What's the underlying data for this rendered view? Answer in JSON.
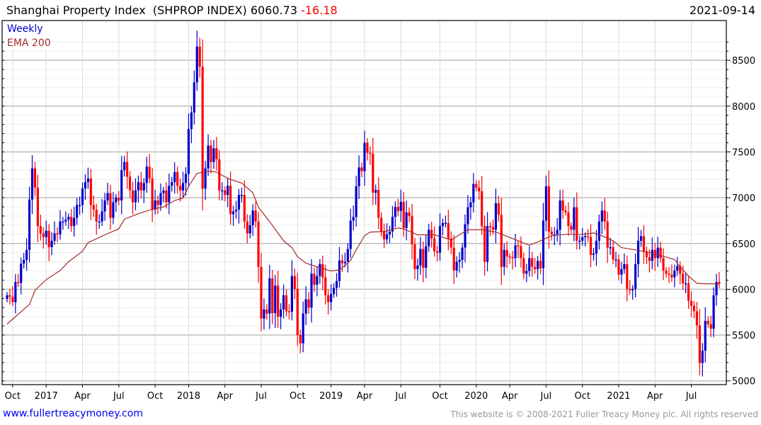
{
  "header": {
    "name": "Shanghai Property Index ",
    "ticker": "(SHPROP INDEX)",
    "last": "6060.73",
    "change": "-16.18",
    "date": "2021-09-14"
  },
  "footer": {
    "site": "www.fullertreacymoney.com",
    "copyright": "This website is © 2008-2021 Fuller Treacy Money plc. All rights reserved"
  },
  "colors": {
    "up": "#0000cc",
    "down": "#ff0000",
    "ema": "#a52a2a",
    "legend_weekly": "#0000cc"
  },
  "chart_data": {
    "type": "candlestick",
    "title": "Shanghai Property Index (SHPROP INDEX) 6060.73 -16.18",
    "legend": [
      "Weekly",
      "EMA 200"
    ],
    "legend_placement": "top-left",
    "frequency": "weekly",
    "ylim": [
      4950,
      8800
    ],
    "y_ticks": [
      5000,
      5500,
      6000,
      6500,
      7000,
      7500,
      8000,
      8500
    ],
    "x_ticks": [
      "Oct",
      "2017",
      "Apr",
      "Jul",
      "Oct",
      "2018",
      "Apr",
      "Jul",
      "Oct",
      "2019",
      "Apr",
      "Jul",
      "Oct",
      "2020",
      "Apr",
      "Jul",
      "Oct",
      "2021",
      "Apr",
      "Jul"
    ],
    "x_tick_weeks": [
      2,
      14,
      27,
      40,
      53,
      65,
      78,
      91,
      104,
      116,
      128,
      141,
      155,
      168,
      180,
      193,
      206,
      219,
      232,
      245
    ],
    "close": [
      5935,
      5920,
      5860,
      6080,
      6070,
      6280,
      6320,
      6430,
      6980,
      7320,
      7110,
      6690,
      6610,
      6570,
      6640,
      6460,
      6530,
      6610,
      6600,
      6740,
      6740,
      6760,
      6790,
      6690,
      6780,
      6920,
      6920,
      7100,
      7170,
      7210,
      6920,
      6870,
      6740,
      6740,
      6850,
      6970,
      7050,
      6780,
      6950,
      7000,
      6970,
      7300,
      7390,
      7230,
      7080,
      6950,
      7080,
      7170,
      7080,
      7160,
      7340,
      7210,
      6870,
      6970,
      6920,
      7050,
      7080,
      6950,
      7130,
      7170,
      7280,
      7130,
      7080,
      7160,
      7260,
      7750,
      7930,
      8260,
      8650,
      8430,
      7100,
      7320,
      7570,
      7390,
      7540,
      7420,
      7080,
      7080,
      7030,
      7130,
      6820,
      6850,
      6870,
      7030,
      7030,
      6740,
      6610,
      6700,
      6860,
      6740,
      6245,
      5680,
      5780,
      5735,
      6120,
      5740,
      6040,
      5700,
      5780,
      5935,
      5760,
      5755,
      6145,
      6005,
      5500,
      5410,
      5735,
      5890,
      5800,
      6170,
      6050,
      6145,
      6275,
      6130,
      5935,
      5860,
      5950,
      6015,
      6090,
      6315,
      6285,
      6300,
      6440,
      6750,
      6790,
      7125,
      7330,
      7290,
      7600,
      7490,
      7480,
      7055,
      7085,
      6780,
      6630,
      6545,
      6600,
      6630,
      6790,
      6900,
      6855,
      6955,
      6670,
      6840,
      6800,
      6490,
      6220,
      6260,
      6440,
      6235,
      6470,
      6650,
      6555,
      6415,
      6400,
      6690,
      6725,
      6725,
      6555,
      6455,
      6205,
      6300,
      6320,
      6455,
      6710,
      6895,
      6950,
      7150,
      7110,
      7070,
      6690,
      6300,
      6690,
      6680,
      6650,
      6940,
      6815,
      6245,
      6430,
      6360,
      6350,
      6340,
      6480,
      6470,
      6340,
      6170,
      6200,
      6340,
      6245,
      6220,
      6310,
      6230,
      6750,
      7125,
      6630,
      6600,
      6600,
      6650,
      6970,
      6860,
      6840,
      6690,
      6650,
      6895,
      6530,
      6530,
      6570,
      6580,
      6570,
      6375,
      6390,
      6530,
      6740,
      6860,
      6740,
      6455,
      6460,
      6325,
      6325,
      6160,
      6220,
      6275,
      6005,
      5990,
      6005,
      6275,
      6530,
      6580,
      6415,
      6350,
      6310,
      6430,
      6340,
      6455,
      6340,
      6205,
      6170,
      6160,
      6130,
      6205,
      6255,
      6170,
      6065,
      6065,
      5875,
      5820,
      5760,
      5605,
      5195,
      5330,
      5655,
      5620,
      5570,
      5935,
      6080,
      6061
    ],
    "ema200": [
      [
        0,
        5620
      ],
      [
        8,
        5835
      ],
      [
        10,
        5990
      ],
      [
        14,
        6105
      ],
      [
        19,
        6205
      ],
      [
        22,
        6300
      ],
      [
        27,
        6415
      ],
      [
        29,
        6510
      ],
      [
        35,
        6595
      ],
      [
        40,
        6660
      ],
      [
        42,
        6765
      ],
      [
        47,
        6825
      ],
      [
        51,
        6865
      ],
      [
        56,
        6900
      ],
      [
        60,
        6970
      ],
      [
        63,
        6995
      ],
      [
        65,
        7125
      ],
      [
        68,
        7265
      ],
      [
        72,
        7290
      ],
      [
        75,
        7280
      ],
      [
        79,
        7210
      ],
      [
        84,
        7160
      ],
      [
        88,
        7055
      ],
      [
        90,
        6895
      ],
      [
        94,
        6740
      ],
      [
        99,
        6530
      ],
      [
        102,
        6455
      ],
      [
        104,
        6355
      ],
      [
        107,
        6285
      ],
      [
        112,
        6235
      ],
      [
        116,
        6200
      ],
      [
        119,
        6210
      ],
      [
        123,
        6315
      ],
      [
        125,
        6430
      ],
      [
        128,
        6585
      ],
      [
        130,
        6625
      ],
      [
        135,
        6630
      ],
      [
        140,
        6670
      ],
      [
        142,
        6660
      ],
      [
        147,
        6595
      ],
      [
        153,
        6595
      ],
      [
        159,
        6540
      ],
      [
        165,
        6650
      ],
      [
        170,
        6650
      ],
      [
        175,
        6625
      ],
      [
        183,
        6530
      ],
      [
        187,
        6480
      ],
      [
        191,
        6530
      ],
      [
        195,
        6585
      ],
      [
        200,
        6600
      ],
      [
        206,
        6600
      ],
      [
        210,
        6615
      ],
      [
        213,
        6585
      ],
      [
        217,
        6530
      ],
      [
        220,
        6455
      ],
      [
        225,
        6430
      ],
      [
        230,
        6400
      ],
      [
        235,
        6360
      ],
      [
        239,
        6325
      ],
      [
        241,
        6245
      ],
      [
        244,
        6145
      ],
      [
        247,
        6065
      ],
      [
        250,
        6060
      ],
      [
        255,
        6060
      ]
    ]
  }
}
